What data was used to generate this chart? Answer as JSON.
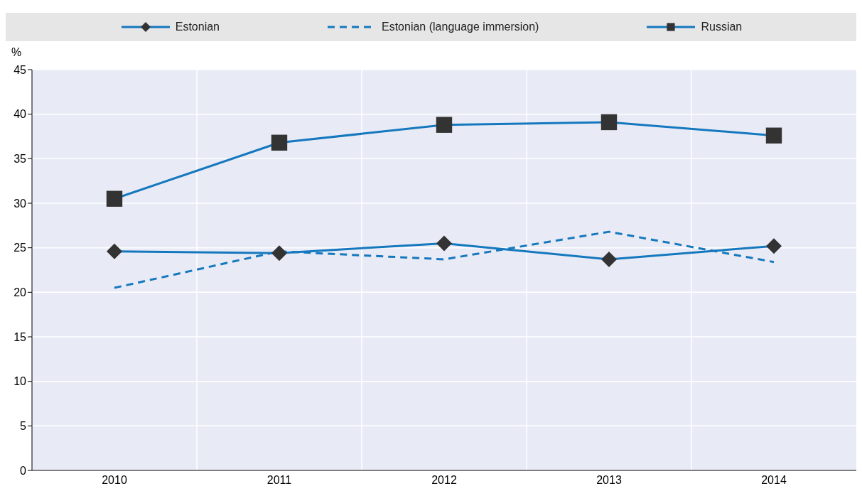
{
  "chart_data": {
    "type": "line",
    "ylabel": "%",
    "categories": [
      "2010",
      "2011",
      "2012",
      "2013",
      "2014"
    ],
    "series": [
      {
        "name": "Estonian",
        "color": "#1578be",
        "marker": "diamond",
        "line_style": "solid",
        "values": [
          24.6,
          24.4,
          25.5,
          23.7,
          25.2
        ]
      },
      {
        "name": "Estonian (language immersion)",
        "color": "#1578be",
        "marker": "none",
        "line_style": "dashed",
        "values": [
          20.5,
          24.6,
          23.7,
          26.8,
          23.4
        ]
      },
      {
        "name": "Russian",
        "color": "#1578be",
        "marker": "square",
        "line_style": "solid",
        "values": [
          30.5,
          36.8,
          38.8,
          39.1,
          37.6
        ]
      }
    ],
    "ylim": [
      0,
      45
    ],
    "yticks": [
      0,
      5,
      10,
      15,
      20,
      25,
      30,
      35,
      40,
      45
    ],
    "grid": true,
    "legend": "top"
  }
}
